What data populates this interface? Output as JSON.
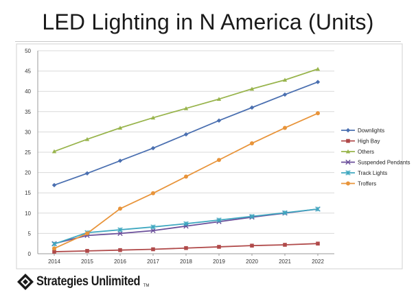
{
  "slide": {
    "title": "LED Lighting in N America (Units)",
    "brand": {
      "name": "Strategies Unlimited",
      "trademark": "TM"
    }
  },
  "chart_data": {
    "type": "line",
    "title": "",
    "xlabel": "",
    "ylabel": "",
    "categories": [
      "2014",
      "2015",
      "2016",
      "2017",
      "2018",
      "2019",
      "2020",
      "2021",
      "2022"
    ],
    "ylim": [
      0,
      50
    ],
    "yticks": [
      0,
      5,
      10,
      15,
      20,
      25,
      30,
      35,
      40,
      45,
      50
    ],
    "grid": "horizontal",
    "legend_position": "right",
    "series": [
      {
        "name": "Downlights",
        "color": "#4a6fb0",
        "marker": "diamond",
        "values": [
          16.9,
          19.8,
          22.9,
          26.0,
          29.4,
          32.8,
          36.0,
          39.2,
          42.3
        ]
      },
      {
        "name": "High Bay",
        "color": "#b04a4a",
        "marker": "square",
        "values": [
          0.5,
          0.7,
          0.9,
          1.1,
          1.4,
          1.7,
          2.0,
          2.2,
          2.5
        ]
      },
      {
        "name": "Others",
        "color": "#98b44c",
        "marker": "triangle",
        "values": [
          25.2,
          28.2,
          31.0,
          33.5,
          35.8,
          38.1,
          40.6,
          42.8,
          45.5
        ]
      },
      {
        "name": "Suspended Pendants",
        "color": "#6a4e9a",
        "marker": "x",
        "values": [
          2.5,
          4.5,
          5.0,
          5.7,
          6.8,
          7.9,
          9.0,
          10.0,
          11.0
        ]
      },
      {
        "name": "Track Lights",
        "color": "#3fa8c0",
        "marker": "star",
        "values": [
          2.4,
          5.2,
          5.9,
          6.6,
          7.4,
          8.3,
          9.2,
          10.1,
          11.0
        ]
      },
      {
        "name": "Troffers",
        "color": "#e8943a",
        "marker": "circle",
        "values": [
          1.3,
          5.0,
          11.1,
          14.9,
          19.0,
          23.1,
          27.2,
          31.0,
          34.6
        ]
      }
    ]
  }
}
